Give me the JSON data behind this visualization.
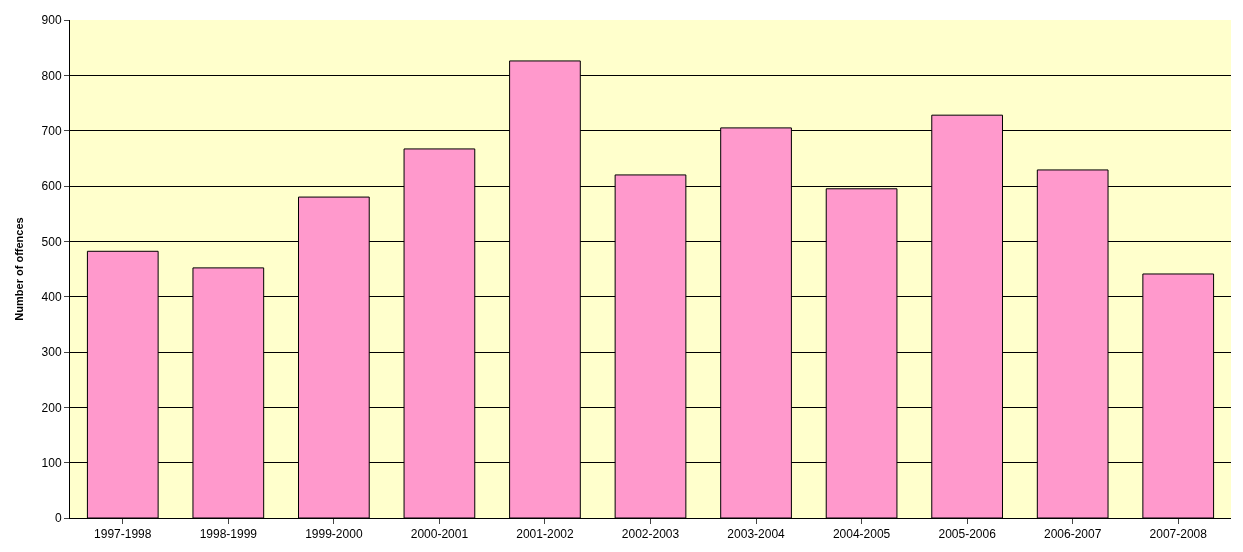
{
  "chart_data": {
    "type": "bar",
    "ylabel": "Number of offences",
    "categories": [
      "1997-1998",
      "1998-1999",
      "1999-2000",
      "2000-2001",
      "2001-2002",
      "2002-2003",
      "2003-2004",
      "2004-2005",
      "2005-2006",
      "2006-2007",
      "2007-2008"
    ],
    "values": [
      482,
      452,
      580,
      667,
      826,
      620,
      705,
      595,
      728,
      629,
      441
    ],
    "color": "#ff99cc",
    "ylim": [
      0,
      900
    ],
    "yticks": [
      0,
      100,
      200,
      300,
      400,
      500,
      600,
      700,
      800,
      900
    ],
    "grid": "y",
    "legend": false
  }
}
